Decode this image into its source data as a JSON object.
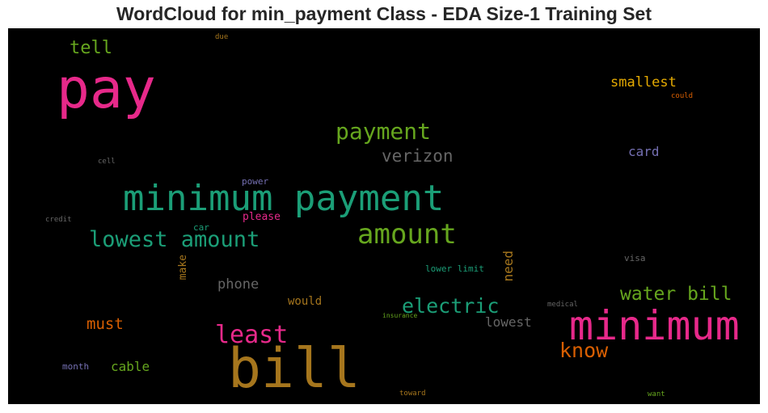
{
  "title": "WordCloud for min_payment Class - EDA Size-1 Training Set",
  "palette": {
    "pink": "#e7298a",
    "green": "#1b9e77",
    "olive": "#66a61e",
    "orange": "#d95f02",
    "gold": "#a6761d",
    "amber": "#e6ab02",
    "purple": "#7570b3",
    "gray": "#666666",
    "background": "#000000"
  },
  "words": [
    {
      "text": "pay",
      "color": "#e7298a"
    },
    {
      "text": "minimum payment",
      "color": "#1b9e77"
    },
    {
      "text": "bill",
      "color": "#a6761d"
    },
    {
      "text": "minimum",
      "color": "#e7298a"
    },
    {
      "text": "amount",
      "color": "#66a61e"
    },
    {
      "text": "lowest amount",
      "color": "#1b9e77"
    },
    {
      "text": "payment",
      "color": "#66a61e"
    },
    {
      "text": "least",
      "color": "#e7298a"
    },
    {
      "text": "electric",
      "color": "#1b9e77"
    },
    {
      "text": "water bill",
      "color": "#66a61e"
    },
    {
      "text": "know",
      "color": "#d95f02"
    },
    {
      "text": "verizon",
      "color": "#666666"
    },
    {
      "text": "tell",
      "color": "#66a61e"
    },
    {
      "text": "smallest",
      "color": "#e6ab02"
    },
    {
      "text": "card",
      "color": "#7570b3"
    },
    {
      "text": "phone",
      "color": "#666666"
    },
    {
      "text": "must",
      "color": "#d95f02"
    },
    {
      "text": "cable",
      "color": "#66a61e"
    },
    {
      "text": "lowest",
      "color": "#666666"
    },
    {
      "text": "need",
      "color": "#a6761d"
    },
    {
      "text": "make",
      "color": "#a6761d"
    },
    {
      "text": "would",
      "color": "#a6761d"
    },
    {
      "text": "please",
      "color": "#e7298a"
    },
    {
      "text": "lower limit",
      "color": "#1b9e77"
    },
    {
      "text": "power",
      "color": "#7570b3"
    },
    {
      "text": "car",
      "color": "#1b9e77"
    },
    {
      "text": "visa",
      "color": "#666666"
    },
    {
      "text": "month",
      "color": "#7570b3"
    },
    {
      "text": "credit",
      "color": "#666666"
    },
    {
      "text": "cell",
      "color": "#666666"
    },
    {
      "text": "due",
      "color": "#a6761d"
    },
    {
      "text": "could",
      "color": "#d95f02"
    },
    {
      "text": "medical",
      "color": "#666666"
    },
    {
      "text": "insurance",
      "color": "#66a61e"
    },
    {
      "text": "toward",
      "color": "#a6761d"
    },
    {
      "text": "want",
      "color": "#66a61e"
    }
  ]
}
